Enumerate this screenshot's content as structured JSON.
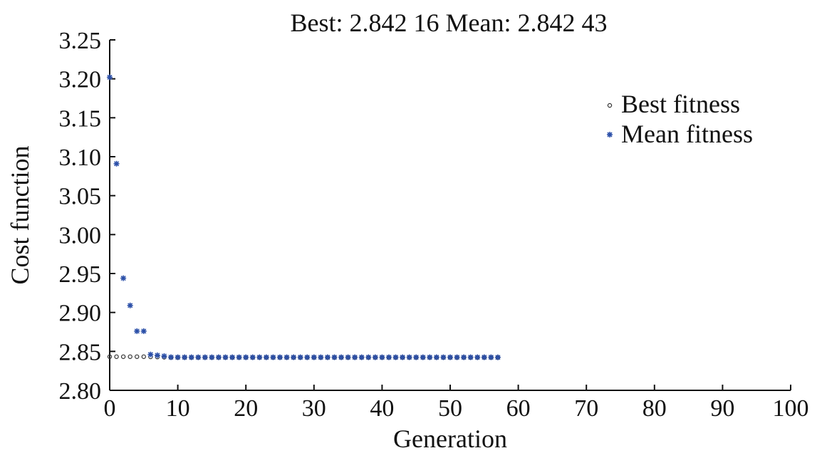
{
  "chart_data": {
    "type": "scatter",
    "title": "Best: 2.842 16 Mean: 2.842 43",
    "xlabel": "Generation",
    "ylabel": "Cost function",
    "xlim": [
      0,
      100
    ],
    "ylim": [
      2.8,
      3.25
    ],
    "xticks": [
      "0",
      "10",
      "20",
      "30",
      "40",
      "50",
      "60",
      "70",
      "80",
      "90",
      "100"
    ],
    "yticks": [
      "2.80",
      "2.85",
      "2.90",
      "2.95",
      "3.00",
      "3.05",
      "3.10",
      "3.15",
      "3.20",
      "3.25"
    ],
    "grid": false,
    "legend_position": "top-right",
    "colors": {
      "best": "#333333",
      "mean": "#2b4fa8",
      "axis": "#111111"
    },
    "series": [
      {
        "name": "Best fitness",
        "marker": "circle",
        "x": [
          0,
          1,
          2,
          3,
          4,
          5,
          6,
          7,
          8,
          9,
          10,
          11,
          12,
          13,
          14,
          15,
          16,
          17,
          18,
          19,
          20,
          21,
          22,
          23,
          24,
          25,
          26,
          27,
          28,
          29,
          30,
          31,
          32,
          33,
          34,
          35,
          36,
          37,
          38,
          39,
          40,
          41,
          42,
          43,
          44,
          45,
          46,
          47,
          48,
          49,
          50,
          51,
          52,
          53,
          54,
          55,
          56,
          57
        ],
        "y": [
          2.8432,
          2.8432,
          2.8432,
          2.8432,
          2.8432,
          2.8432,
          2.843,
          2.8428,
          2.8425,
          2.8422,
          2.8422,
          2.8422,
          2.8422,
          2.8422,
          2.8422,
          2.8422,
          2.8422,
          2.8422,
          2.8422,
          2.8422,
          2.8422,
          2.8422,
          2.8422,
          2.8422,
          2.8422,
          2.8422,
          2.8422,
          2.8422,
          2.8422,
          2.8422,
          2.8422,
          2.8422,
          2.8422,
          2.8422,
          2.8422,
          2.8422,
          2.8422,
          2.8422,
          2.8422,
          2.8422,
          2.8422,
          2.8422,
          2.8422,
          2.8422,
          2.8422,
          2.8422,
          2.8422,
          2.8422,
          2.8422,
          2.8422,
          2.8422,
          2.8422,
          2.8422,
          2.8422,
          2.8422,
          2.8422,
          2.8422,
          2.8422
        ]
      },
      {
        "name": "Mean fitness",
        "marker": "asterisk",
        "x": [
          0,
          1,
          2,
          3,
          4,
          5,
          6,
          7,
          8,
          9,
          10,
          11,
          12,
          13,
          14,
          15,
          16,
          17,
          18,
          19,
          20,
          21,
          22,
          23,
          24,
          25,
          26,
          27,
          28,
          29,
          30,
          31,
          32,
          33,
          34,
          35,
          36,
          37,
          38,
          39,
          40,
          41,
          42,
          43,
          44,
          45,
          46,
          47,
          48,
          49,
          50,
          51,
          52,
          53,
          54,
          55,
          56,
          57
        ],
        "y": [
          3.202,
          3.091,
          2.944,
          2.909,
          2.876,
          2.876,
          2.846,
          2.845,
          2.844,
          2.8426,
          2.8425,
          2.8425,
          2.8425,
          2.8425,
          2.8425,
          2.8425,
          2.8425,
          2.8425,
          2.8425,
          2.8425,
          2.8425,
          2.8425,
          2.8425,
          2.8425,
          2.8425,
          2.8425,
          2.8425,
          2.8425,
          2.8425,
          2.8425,
          2.8425,
          2.8425,
          2.8425,
          2.8425,
          2.8425,
          2.8425,
          2.8425,
          2.8425,
          2.8425,
          2.8425,
          2.8425,
          2.8425,
          2.8425,
          2.8425,
          2.8425,
          2.8425,
          2.8425,
          2.8425,
          2.8425,
          2.8425,
          2.8425,
          2.8425,
          2.8425,
          2.8425,
          2.8425,
          2.8425,
          2.8425,
          2.8424
        ]
      }
    ]
  }
}
